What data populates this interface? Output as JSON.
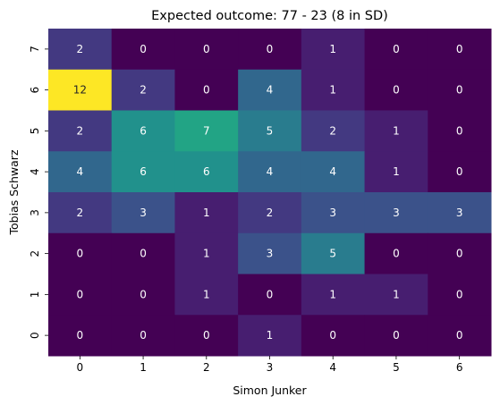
{
  "chart_data": {
    "type": "heatmap",
    "title": "Expected outcome: 77 - 23 (8 in SD)",
    "xlabel": "Simon Junker",
    "ylabel": "Tobias Schwarz",
    "x_categories": [
      "0",
      "1",
      "2",
      "3",
      "4",
      "5",
      "6"
    ],
    "y_categories": [
      "7",
      "6",
      "5",
      "4",
      "3",
      "2",
      "1",
      "0"
    ],
    "values": [
      [
        2,
        0,
        0,
        0,
        1,
        0,
        0
      ],
      [
        12,
        2,
        0,
        4,
        1,
        0,
        0
      ],
      [
        2,
        6,
        7,
        5,
        2,
        1,
        0
      ],
      [
        4,
        6,
        6,
        4,
        4,
        1,
        0
      ],
      [
        2,
        3,
        1,
        2,
        3,
        3,
        3
      ],
      [
        0,
        0,
        1,
        3,
        5,
        0,
        0
      ],
      [
        0,
        0,
        1,
        0,
        1,
        1,
        0
      ],
      [
        0,
        0,
        0,
        1,
        0,
        0,
        0
      ]
    ],
    "colormap": "viridis",
    "vmin": 0,
    "vmax": 12,
    "colorbar": false,
    "grid": false
  }
}
